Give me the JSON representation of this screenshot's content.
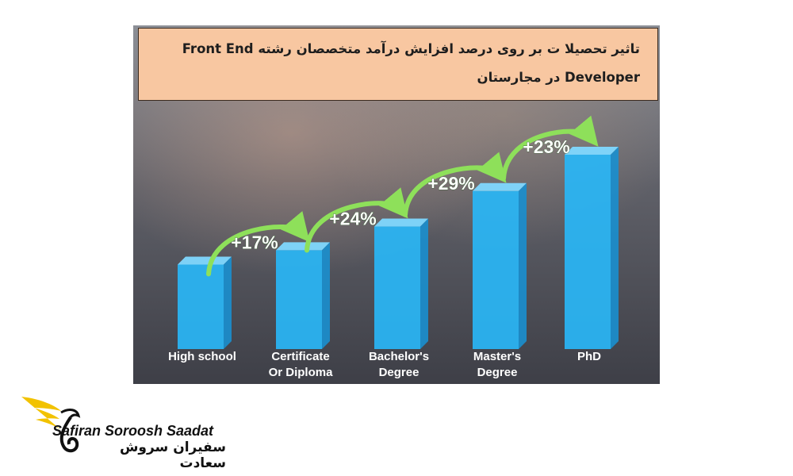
{
  "chart_data": {
    "type": "bar",
    "title": "تاثیر تحصیلا ت بر روی درصد افزایش درآمد متخصصان رشته Front End Developer در مجارستان",
    "categories": [
      "High school",
      "Certificate Or Diploma",
      "Bachelor's Degree",
      "Master's Degree",
      "PhD"
    ],
    "category_lines": [
      [
        "High school"
      ],
      [
        "Certificate",
        "Or Diploma"
      ],
      [
        "Bachelor's",
        "Degree"
      ],
      [
        "Master's",
        "Degree"
      ],
      [
        "PhD"
      ]
    ],
    "values": [
      100,
      117,
      145,
      187,
      230
    ],
    "growth_labels": [
      "+17%",
      "+24%",
      "+29%",
      "+23%"
    ],
    "bar_color": "#29b6f6",
    "bar_top_color": "#7fd8ff",
    "arrow_color": "#8ee05a"
  },
  "brand": {
    "name_en": "Safiran Soroosh Saadat",
    "name_fa": "سفیران سروش سعادت",
    "accent_color": "#f2c200"
  }
}
